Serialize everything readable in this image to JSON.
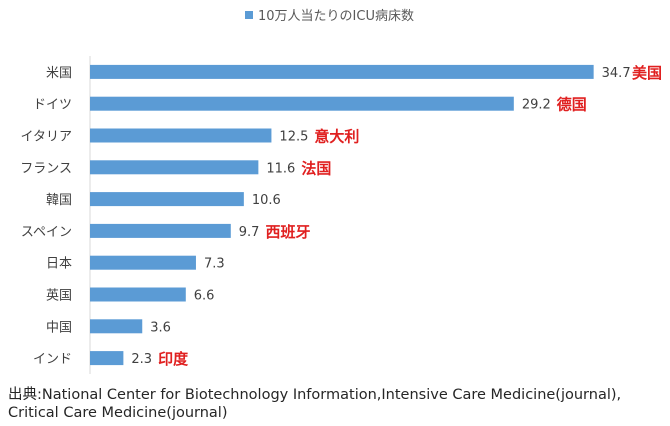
{
  "chart_data": {
    "type": "bar",
    "orientation": "horizontal",
    "legend": "10万人当たりのICU病床数",
    "legend_position": "top",
    "bar_color": "#5b9bd5",
    "annotation_color": "#e02020",
    "categories": [
      "米国",
      "ドイツ",
      "イタリア",
      "フランス",
      "韓国",
      "スペイン",
      "日本",
      "英国",
      "中国",
      "インド"
    ],
    "values": [
      34.7,
      29.2,
      12.5,
      11.6,
      10.6,
      9.7,
      7.3,
      6.6,
      3.6,
      2.3
    ],
    "value_labels": [
      "34.7",
      "29.2",
      "12.5",
      "11.6",
      "10.6",
      "9.7",
      "7.3",
      "6.6",
      "3.6",
      "2.3"
    ],
    "annotations": [
      "美国",
      "德国",
      "意大利",
      "法国",
      "",
      "西班牙",
      "",
      "",
      "",
      "印度"
    ],
    "xlim": [
      0,
      35
    ],
    "grid": false
  },
  "source": {
    "line1": "出典:National Center for Biotechnology Information,Intensive Care Medicine(journal),",
    "line2": "Critical Care Medicine(journal)"
  }
}
